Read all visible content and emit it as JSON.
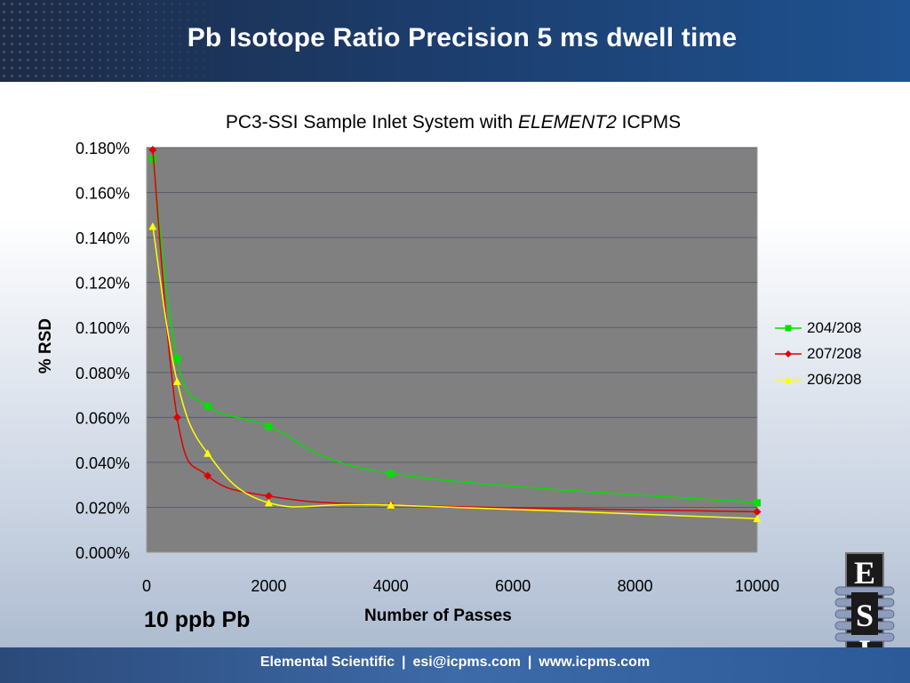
{
  "slide": {
    "title": "Pb Isotope Ratio Precision 5 ms dwell time",
    "sample_label": "10 ppb Pb",
    "footer": [
      "Elemental Scientific",
      "esi@icpms.com",
      "www.icpms.com"
    ],
    "logo_letters": [
      "E",
      "S",
      "I"
    ]
  },
  "chart_title": {
    "plain": "PC3-SSI Sample Inlet System with ",
    "italic": "ELEMENT2",
    "tail": " ICPMS"
  },
  "chart_data": {
    "type": "scatter",
    "title": "PC3-SSI Sample Inlet System with ELEMENT2 ICPMS",
    "xlabel": "Number of Passes",
    "ylabel": "% RSD",
    "xlim": [
      0,
      10000
    ],
    "ylim": [
      0,
      0.18
    ],
    "x_ticks": [
      "0",
      "2000",
      "4000",
      "6000",
      "8000",
      "10000"
    ],
    "y_ticks": [
      "0.000%",
      "0.020%",
      "0.040%",
      "0.060%",
      "0.080%",
      "0.100%",
      "0.120%",
      "0.140%",
      "0.160%",
      "0.180%"
    ],
    "plot_background": "#808080",
    "grid": "horizontal",
    "legend_position": "right",
    "series": [
      {
        "name": "204/208",
        "color": "#00e000",
        "marker": "square",
        "x": [
          100,
          500,
          1000,
          2000,
          4000,
          10000
        ],
        "y": [
          0.175,
          0.086,
          0.065,
          0.056,
          0.035,
          0.022
        ]
      },
      {
        "name": "207/208",
        "color": "#e00000",
        "marker": "diamond",
        "x": [
          100,
          500,
          1000,
          2000,
          4000,
          10000
        ],
        "y": [
          0.179,
          0.06,
          0.034,
          0.025,
          0.021,
          0.018
        ]
      },
      {
        "name": "206/208",
        "color": "#ffff00",
        "marker": "triangle",
        "x": [
          100,
          500,
          1000,
          2000,
          4000,
          10000
        ],
        "y": [
          0.145,
          0.076,
          0.044,
          0.022,
          0.021,
          0.015
        ]
      }
    ]
  }
}
